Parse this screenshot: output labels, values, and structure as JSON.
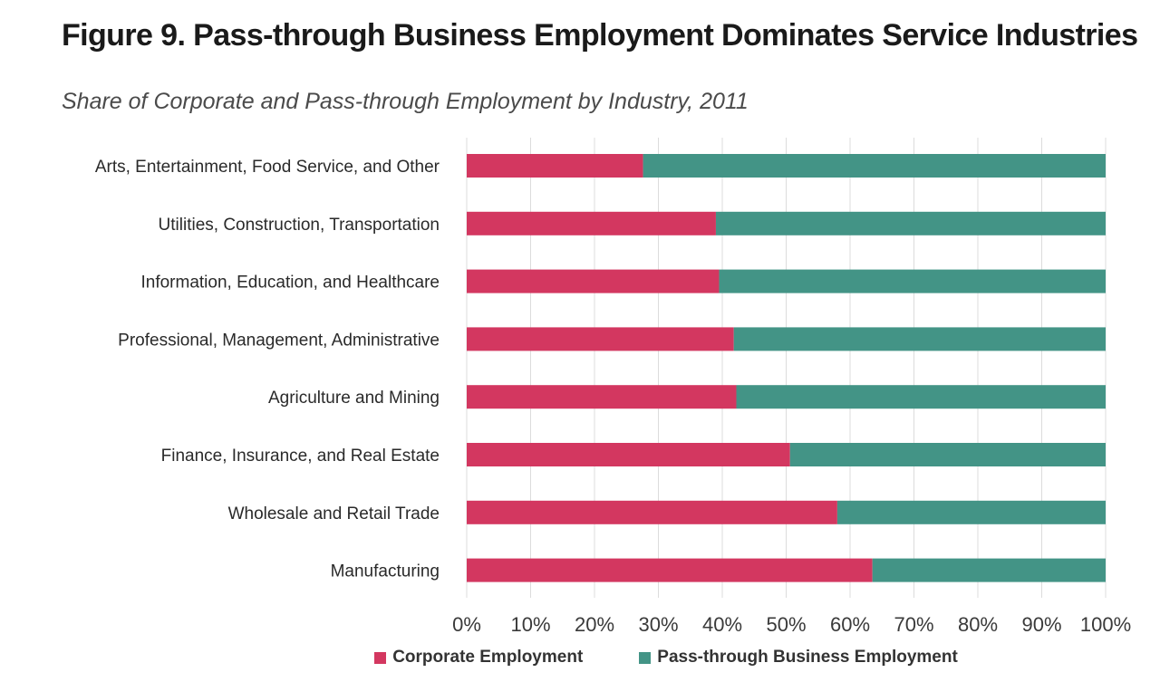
{
  "chart_data": {
    "type": "bar",
    "orientation": "horizontal",
    "stacked": true,
    "title": "Figure 9. Pass-through Business Employment Dominates Service Industries",
    "subtitle": "Share of Corporate and Pass-through Employment by Industry, 2011",
    "categories": [
      "Arts, Entertainment, Food Service, and Other",
      "Utilities, Construction, Transportation",
      "Information, Education, and Healthcare",
      "Professional, Management, Administrative",
      "Agriculture and Mining",
      "Finance, Insurance, and Real Estate",
      "Wholesale and Retail Trade",
      "Manufacturing"
    ],
    "series": [
      {
        "name": "Corporate Employment",
        "color": "#d33760",
        "values": [
          27.6,
          39,
          39.5,
          41.8,
          42.2,
          50.6,
          58,
          63.5
        ]
      },
      {
        "name": "Pass-through Business Employment",
        "color": "#439486",
        "values": [
          72.4,
          61,
          60.5,
          58.2,
          57.8,
          49.4,
          42,
          36.5
        ]
      }
    ],
    "xlim": [
      0,
      100
    ],
    "xticks": [
      "0%",
      "10%",
      "20%",
      "30%",
      "40%",
      "50%",
      "60%",
      "70%",
      "80%",
      "90%",
      "100%"
    ],
    "grid": true,
    "legend_position": "bottom"
  }
}
